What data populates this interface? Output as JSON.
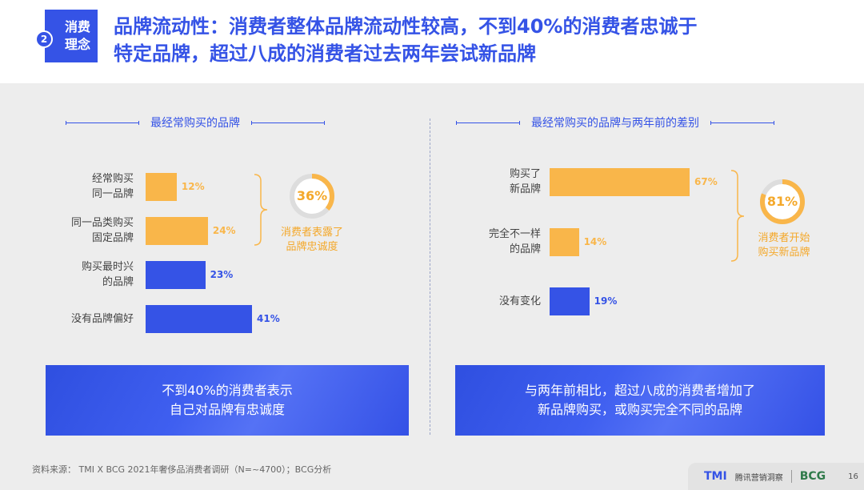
{
  "header": {
    "tag_number": "2",
    "tag_line1": "消费",
    "tag_line2": "理念",
    "title_line1": "品牌流动性：消费者整体品牌流动性较高，不到40%的消费者忠诚于",
    "title_line2": "特定品牌，超过八成的消费者过去两年尝试新品牌"
  },
  "chart_data": [
    {
      "type": "bar",
      "orientation": "horizontal",
      "title": "最经常购买的品牌",
      "categories": [
        "经常购买\n同一品牌",
        "同一品类购买\n固定品牌",
        "购买最时兴\n的品牌",
        "没有品牌偏好"
      ],
      "values": [
        12,
        24,
        23,
        41
      ],
      "value_labels": [
        "12%",
        "24%",
        "23%",
        "41%"
      ],
      "bar_colors": [
        "#f9b64a",
        "#f9b64a",
        "#3553e6",
        "#3553e6"
      ],
      "xlim": [
        0,
        41
      ],
      "annotation": {
        "value": 36,
        "label": "36%",
        "text_line1": "消费者表露了",
        "text_line2": "品牌忠诚度"
      }
    },
    {
      "type": "bar",
      "orientation": "horizontal",
      "title": "最经常购买的品牌与两年前的差别",
      "categories": [
        "购买了\n新品牌",
        "完全不一样\n的品牌",
        "没有变化"
      ],
      "values": [
        67,
        14,
        19
      ],
      "value_labels": [
        "67%",
        "14%",
        "19%"
      ],
      "bar_colors": [
        "#f9b64a",
        "#f9b64a",
        "#3553e6"
      ],
      "xlim": [
        0,
        67
      ],
      "annotation": {
        "value": 81,
        "label": "81%",
        "text_line1": "消费者开始",
        "text_line2": "购买新品牌"
      }
    }
  ],
  "banners": {
    "left_line1": "不到40%的消费者表示",
    "left_line2": "自己对品牌有忠诚度",
    "right_line1": "与两年前相比，超过八成的消费者增加了",
    "right_line2": "新品牌购买，或购买完全不同的品牌"
  },
  "footer": {
    "source": "资料来源： TMI X BCG 2021年奢侈品消费者调研（N=~4700）；BCG分析",
    "tmi_logo": "TMI",
    "tmi_name": "腾讯营销洞察",
    "bcg_logo": "BCG",
    "page": "16"
  },
  "colors": {
    "blue": "#3553e6",
    "orange": "#f9b64a",
    "ring_track": "#dddddd"
  }
}
